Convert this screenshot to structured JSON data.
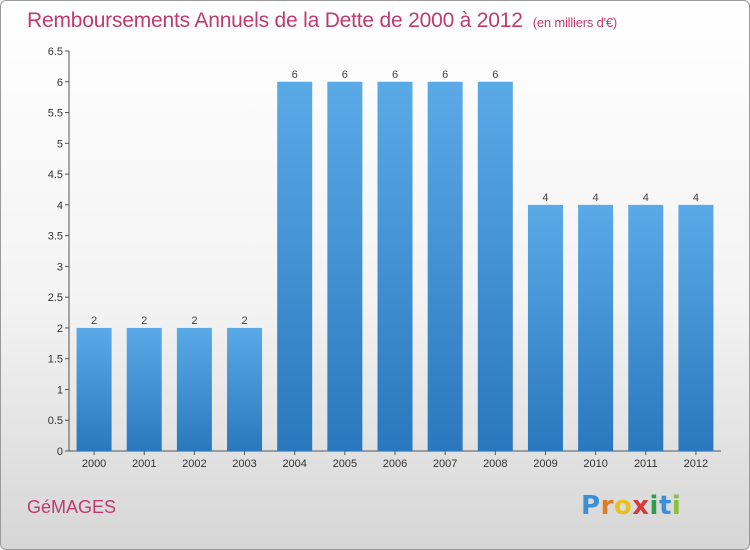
{
  "header": {
    "title": "Remboursements Annuels de la Dette de 2000 à 2012",
    "unit": "(en milliers d'€)"
  },
  "footer": {
    "commune": "GéMAGES",
    "logo_text": "Proxiti",
    "logo_letters": [
      {
        "char": "P",
        "color": "#3a8fd6"
      },
      {
        "char": "r",
        "color": "#e07b22"
      },
      {
        "char": "o",
        "color": "#e8c11f"
      },
      {
        "char": "x",
        "color": "#d63a3a"
      },
      {
        "char": "i",
        "color": "#2f9e4a"
      },
      {
        "char": "t",
        "color": "#3a8fd6"
      },
      {
        "char": "i",
        "color": "#8bbf3a"
      }
    ]
  },
  "colors": {
    "accent": "#c23a6d",
    "bar_top": "#5aaae8",
    "bar_bottom": "#2a78bd"
  },
  "chart_data": {
    "type": "bar",
    "title": "Remboursements Annuels de la Dette de 2000 à 2012",
    "categories": [
      "2000",
      "2001",
      "2002",
      "2003",
      "2004",
      "2005",
      "2006",
      "2007",
      "2008",
      "2009",
      "2010",
      "2011",
      "2012"
    ],
    "values": [
      2,
      2,
      2,
      2,
      6,
      6,
      6,
      6,
      6,
      4,
      4,
      4,
      4
    ],
    "data_labels": [
      "2",
      "2",
      "2",
      "2",
      "6",
      "6",
      "6",
      "6",
      "6",
      "4",
      "4",
      "4",
      "4"
    ],
    "yticks": [
      "0",
      "0.5",
      "1",
      "1.5",
      "2",
      "2.5",
      "3",
      "3.5",
      "4",
      "4.5",
      "5",
      "5.5",
      "6",
      "6.5"
    ],
    "ylim": [
      0,
      6.5
    ],
    "grid": false
  }
}
